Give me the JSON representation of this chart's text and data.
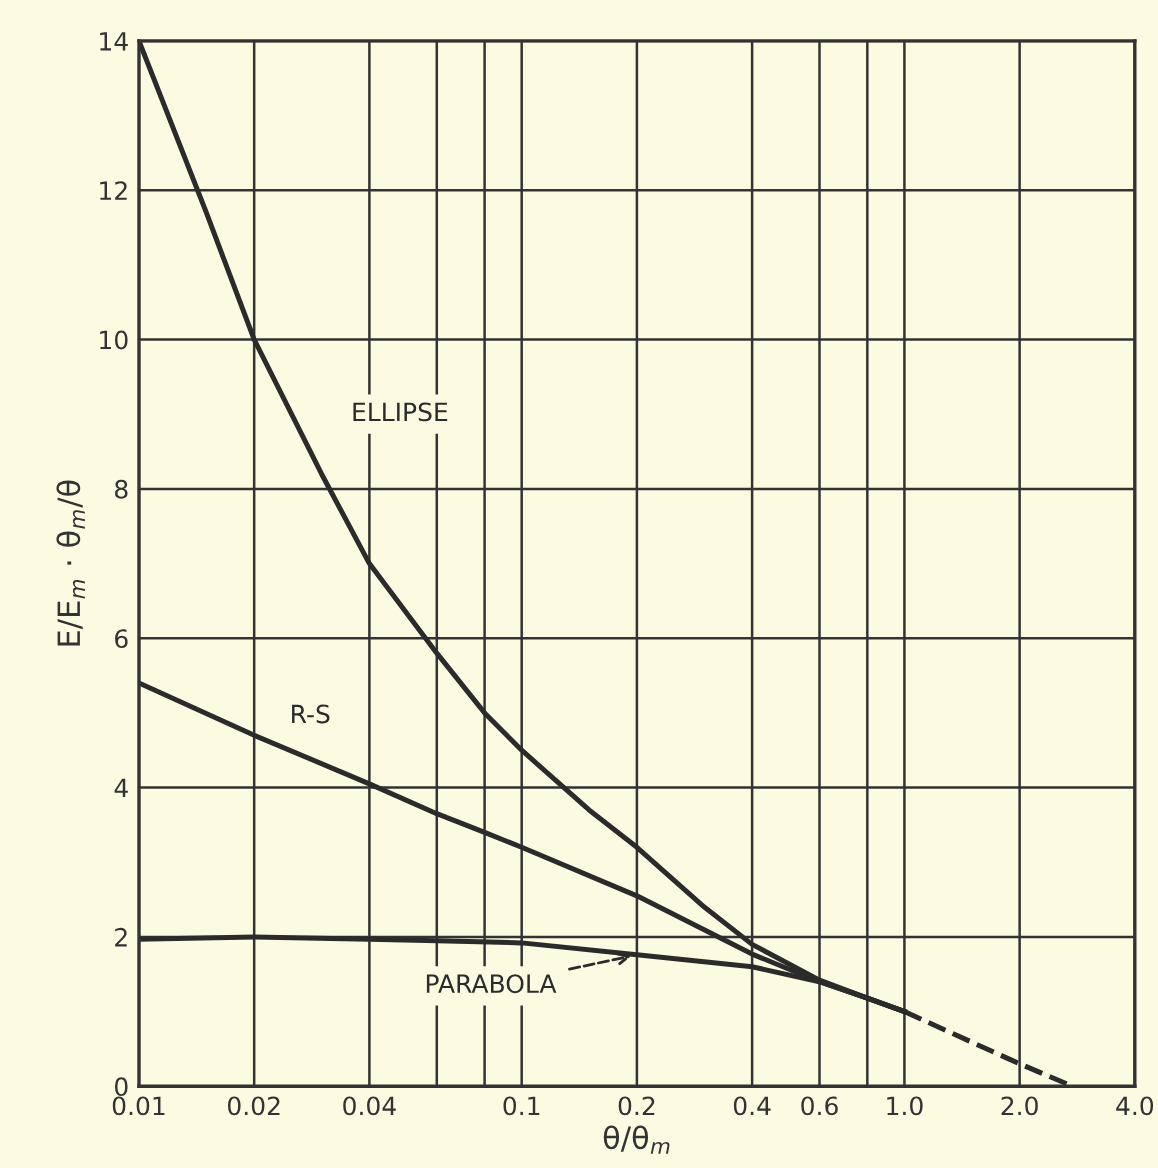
{
  "chart_data": {
    "type": "line",
    "xlabel": "θ/θ$_{m}$",
    "ylabel": "E/E$_{m}$ · θ$_{m}$/θ",
    "log": "x",
    "grid": true,
    "line_style": "solid",
    "marker": "none",
    "xlim": [
      0.01,
      4.0
    ],
    "ylim": [
      0,
      14
    ],
    "xticks": [
      0.01,
      0.02,
      0.04,
      {
        "value": 0.06,
        "label": null
      },
      {
        "value": 0.08,
        "label": null
      },
      0.1,
      0.2,
      0.4,
      0.6,
      {
        "value": 0.8,
        "label": null
      },
      {
        "value": 1.0,
        "label": "1.0"
      },
      {
        "value": 2.0,
        "label": "2.0"
      },
      {
        "value": 4.0,
        "label": "4.0"
      }
    ],
    "yticks": [
      0,
      2,
      4,
      6,
      8,
      10,
      12,
      14
    ],
    "series": [
      {
        "name": "ELLIPSE",
        "color": "#2b2b2b",
        "x": [
          0.01,
          0.015,
          0.02,
          0.03,
          0.04,
          0.06,
          0.08,
          0.1,
          0.15,
          0.2,
          0.3,
          0.4,
          0.6,
          0.8,
          1.0
        ],
        "values": [
          14,
          11.7,
          10,
          8.2,
          7,
          5.8,
          5.0,
          4.5,
          3.7,
          3.2,
          2.4,
          1.9,
          1.42,
          1.18,
          1.0
        ]
      },
      {
        "name": "R-S",
        "color": "#2b2b2b",
        "x": [
          0.01,
          0.02,
          0.04,
          0.06,
          0.08,
          0.1,
          0.2,
          0.4,
          0.6,
          0.8,
          1.0
        ],
        "values": [
          5.4,
          4.7,
          4.05,
          3.65,
          3.4,
          3.2,
          2.55,
          1.77,
          1.4,
          1.18,
          1.0
        ]
      },
      {
        "name": "PARABOLA",
        "color": "#2b2b2b",
        "x": [
          0.01,
          0.02,
          0.04,
          0.06,
          0.1,
          0.2,
          0.4,
          0.6,
          0.8,
          1.0
        ],
        "values": [
          1.97,
          2.0,
          1.97,
          1.95,
          1.92,
          1.76,
          1.6,
          1.4,
          1.18,
          1.0
        ]
      },
      {
        "color": "#2b2b2b",
        "line_style": "dashed",
        "x": [
          1.0,
          2.0,
          2.75
        ],
        "values": [
          1.0,
          0.3,
          0
        ]
      }
    ]
  }
}
